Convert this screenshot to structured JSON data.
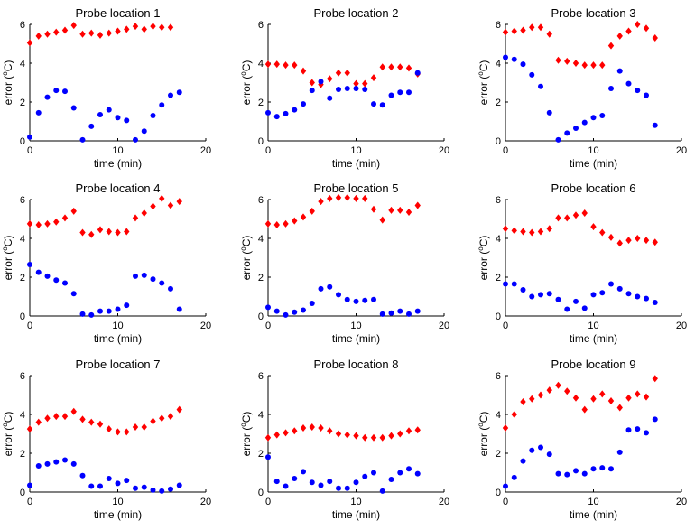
{
  "figure": {
    "marker_colors": {
      "red_series": "#ff0000",
      "blue_series": "#0000ff"
    }
  },
  "chart_data": [
    {
      "type": "scatter",
      "title": "Probe location 1",
      "xlabel": "time (min)",
      "ylabel_prefix": "error (",
      "ylabel_sup": "o",
      "ylabel_suffix": "C)",
      "xlim": [
        0,
        20
      ],
      "ylim": [
        0,
        6
      ],
      "xticks": [
        "0",
        "10",
        "20"
      ],
      "yticks": [
        "0",
        "2",
        "4",
        "6"
      ],
      "series": [
        {
          "name": "red",
          "marker": "diamond",
          "color": "#ff0000",
          "x": [
            0,
            1,
            2,
            3,
            4,
            5,
            6,
            7,
            8,
            9,
            10,
            11,
            12,
            13,
            14,
            15,
            16,
            17
          ],
          "y": [
            5.05,
            5.4,
            5.5,
            5.6,
            5.7,
            5.95,
            5.5,
            5.55,
            5.45,
            5.55,
            5.65,
            5.75,
            5.9,
            5.75,
            5.9,
            5.85,
            5.85,
            null
          ]
        },
        {
          "name": "blue",
          "marker": "circle",
          "color": "#0000ff",
          "x": [
            0,
            1,
            2,
            3,
            4,
            5,
            6,
            7,
            8,
            9,
            10,
            11,
            12,
            13,
            14,
            15,
            16,
            17
          ],
          "y": [
            0.2,
            1.45,
            2.25,
            2.6,
            2.55,
            1.7,
            0.05,
            0.75,
            1.35,
            1.6,
            1.2,
            1.05,
            0.05,
            0.5,
            1.3,
            1.85,
            2.35,
            2.5
          ]
        }
      ]
    },
    {
      "type": "scatter",
      "title": "Probe location 2",
      "xlabel": "time (min)",
      "ylabel_prefix": "error (",
      "ylabel_sup": "o",
      "ylabel_suffix": "C)",
      "xlim": [
        0,
        20
      ],
      "ylim": [
        0,
        6
      ],
      "xticks": [
        "0",
        "10",
        "20"
      ],
      "yticks": [
        "0",
        "2",
        "4",
        "6"
      ],
      "series": [
        {
          "name": "red",
          "marker": "diamond",
          "color": "#ff0000",
          "x": [
            0,
            1,
            2,
            3,
            4,
            5,
            6,
            7,
            8,
            9,
            10,
            11,
            12,
            13,
            14,
            15,
            16,
            17
          ],
          "y": [
            3.95,
            3.95,
            3.9,
            3.9,
            3.6,
            3.0,
            2.9,
            3.2,
            3.5,
            3.5,
            2.95,
            2.95,
            3.25,
            3.8,
            3.8,
            3.8,
            3.75,
            3.45
          ]
        },
        {
          "name": "blue",
          "marker": "circle",
          "color": "#0000ff",
          "x": [
            0,
            1,
            2,
            3,
            4,
            5,
            6,
            7,
            8,
            9,
            10,
            11,
            12,
            13,
            14,
            15,
            16,
            17
          ],
          "y": [
            1.45,
            1.25,
            1.4,
            1.6,
            1.9,
            2.6,
            3.05,
            2.2,
            2.65,
            2.7,
            2.7,
            2.65,
            1.9,
            1.85,
            2.35,
            2.5,
            2.5,
            3.5
          ]
        }
      ]
    },
    {
      "type": "scatter",
      "title": "Probe location 3",
      "xlabel": "time (min)",
      "ylabel_prefix": "error (",
      "ylabel_sup": "o",
      "ylabel_suffix": "C)",
      "xlim": [
        0,
        20
      ],
      "ylim": [
        0,
        6
      ],
      "xticks": [
        "0",
        "10",
        "20"
      ],
      "yticks": [
        "0",
        "2",
        "4",
        "6"
      ],
      "series": [
        {
          "name": "red",
          "marker": "diamond",
          "color": "#ff0000",
          "x": [
            0,
            1,
            2,
            3,
            4,
            5,
            6,
            7,
            8,
            9,
            10,
            11,
            12,
            13,
            14,
            15,
            16,
            17
          ],
          "y": [
            5.6,
            5.65,
            5.7,
            5.85,
            5.85,
            5.5,
            4.15,
            4.1,
            4.0,
            3.9,
            3.9,
            3.9,
            4.9,
            5.4,
            5.65,
            6.0,
            5.8,
            5.3
          ]
        },
        {
          "name": "blue",
          "marker": "circle",
          "color": "#0000ff",
          "x": [
            0,
            1,
            2,
            3,
            4,
            5,
            6,
            7,
            8,
            9,
            10,
            11,
            12,
            13,
            14,
            15,
            16,
            17
          ],
          "y": [
            4.3,
            4.2,
            3.95,
            3.4,
            2.8,
            1.45,
            0.05,
            0.4,
            0.65,
            0.95,
            1.2,
            1.3,
            2.7,
            3.6,
            2.95,
            2.6,
            2.35,
            0.8
          ]
        }
      ]
    },
    {
      "type": "scatter",
      "title": "Probe location 4",
      "xlabel": "time (min)",
      "ylabel_prefix": "error (",
      "ylabel_sup": "o",
      "ylabel_suffix": "C)",
      "xlim": [
        0,
        20
      ],
      "ylim": [
        0,
        6
      ],
      "xticks": [
        "0",
        "10",
        "20"
      ],
      "yticks": [
        "0",
        "2",
        "4",
        "6"
      ],
      "series": [
        {
          "name": "red",
          "marker": "diamond",
          "color": "#ff0000",
          "x": [
            0,
            1,
            2,
            3,
            4,
            5,
            6,
            7,
            8,
            9,
            10,
            11,
            12,
            13,
            14,
            15,
            16,
            17
          ],
          "y": [
            4.75,
            4.7,
            4.75,
            4.85,
            5.05,
            5.4,
            4.3,
            4.2,
            4.45,
            4.35,
            4.3,
            4.35,
            5.05,
            5.3,
            5.65,
            6.05,
            5.7,
            5.9
          ]
        },
        {
          "name": "blue",
          "marker": "circle",
          "color": "#0000ff",
          "x": [
            0,
            1,
            2,
            3,
            4,
            5,
            6,
            7,
            8,
            9,
            10,
            11,
            12,
            13,
            14,
            15,
            16,
            17
          ],
          "y": [
            2.65,
            2.25,
            2.05,
            1.85,
            1.7,
            1.15,
            0.1,
            0.05,
            0.25,
            0.25,
            0.35,
            0.55,
            2.05,
            2.1,
            1.9,
            1.7,
            1.4,
            0.35
          ]
        }
      ]
    },
    {
      "type": "scatter",
      "title": "Probe location 5",
      "xlabel": "time (min)",
      "ylabel_prefix": "error (",
      "ylabel_sup": "o",
      "ylabel_suffix": "C)",
      "xlim": [
        0,
        20
      ],
      "ylim": [
        0,
        6
      ],
      "xticks": [
        "0",
        "10",
        "20"
      ],
      "yticks": [
        "0",
        "2",
        "4",
        "6"
      ],
      "series": [
        {
          "name": "red",
          "marker": "diamond",
          "color": "#ff0000",
          "x": [
            0,
            1,
            2,
            3,
            4,
            5,
            6,
            7,
            8,
            9,
            10,
            11,
            12,
            13,
            14,
            15,
            16,
            17
          ],
          "y": [
            4.75,
            4.7,
            4.75,
            4.9,
            5.1,
            5.4,
            5.9,
            6.05,
            6.1,
            6.1,
            6.05,
            6.05,
            5.5,
            4.95,
            5.45,
            5.45,
            5.35,
            5.7
          ]
        },
        {
          "name": "blue",
          "marker": "circle",
          "color": "#0000ff",
          "x": [
            0,
            1,
            2,
            3,
            4,
            5,
            6,
            7,
            8,
            9,
            10,
            11,
            12,
            13,
            14,
            15,
            16,
            17
          ],
          "y": [
            0.45,
            0.25,
            0.05,
            0.2,
            0.3,
            0.65,
            1.4,
            1.5,
            1.1,
            0.85,
            0.75,
            0.8,
            0.85,
            0.1,
            0.15,
            0.25,
            0.1,
            0.25
          ]
        }
      ]
    },
    {
      "type": "scatter",
      "title": "Probe location 6",
      "xlabel": "time (min)",
      "ylabel_prefix": "error (",
      "ylabel_sup": "o",
      "ylabel_suffix": "C)",
      "xlim": [
        0,
        20
      ],
      "ylim": [
        0,
        6
      ],
      "xticks": [
        "0",
        "10",
        "20"
      ],
      "yticks": [
        "0",
        "2",
        "4",
        "6"
      ],
      "series": [
        {
          "name": "red",
          "marker": "diamond",
          "color": "#ff0000",
          "x": [
            0,
            1,
            2,
            3,
            4,
            5,
            6,
            7,
            8,
            9,
            10,
            11,
            12,
            13,
            14,
            15,
            16,
            17
          ],
          "y": [
            4.5,
            4.4,
            4.35,
            4.3,
            4.35,
            4.5,
            5.05,
            5.05,
            5.2,
            5.3,
            4.6,
            4.3,
            4.05,
            3.75,
            3.9,
            4.0,
            3.9,
            3.8
          ]
        },
        {
          "name": "blue",
          "marker": "circle",
          "color": "#0000ff",
          "x": [
            0,
            1,
            2,
            3,
            4,
            5,
            6,
            7,
            8,
            9,
            10,
            11,
            12,
            13,
            14,
            15,
            16,
            17
          ],
          "y": [
            1.65,
            1.65,
            1.35,
            1.0,
            1.1,
            1.15,
            0.85,
            0.35,
            0.75,
            0.4,
            1.1,
            1.2,
            1.65,
            1.4,
            1.15,
            1.0,
            0.9,
            0.7
          ]
        }
      ]
    },
    {
      "type": "scatter",
      "title": "Probe location 7",
      "xlabel": "time (min)",
      "ylabel_prefix": "error (",
      "ylabel_sup": "o",
      "ylabel_suffix": "C)",
      "xlim": [
        0,
        20
      ],
      "ylim": [
        0,
        6
      ],
      "xticks": [
        "0",
        "10",
        "20"
      ],
      "yticks": [
        "0",
        "2",
        "4",
        "6"
      ],
      "series": [
        {
          "name": "red",
          "marker": "diamond",
          "color": "#ff0000",
          "x": [
            0,
            1,
            2,
            3,
            4,
            5,
            6,
            7,
            8,
            9,
            10,
            11,
            12,
            13,
            14,
            15,
            16,
            17
          ],
          "y": [
            3.25,
            3.6,
            3.8,
            3.9,
            3.9,
            4.15,
            3.75,
            3.6,
            3.5,
            3.25,
            3.1,
            3.1,
            3.35,
            3.35,
            3.65,
            3.8,
            3.9,
            4.25
          ]
        },
        {
          "name": "blue",
          "marker": "circle",
          "color": "#0000ff",
          "x": [
            0,
            1,
            2,
            3,
            4,
            5,
            6,
            7,
            8,
            9,
            10,
            11,
            12,
            13,
            14,
            15,
            16,
            17
          ],
          "y": [
            0.35,
            1.35,
            1.45,
            1.55,
            1.65,
            1.45,
            0.85,
            0.3,
            0.3,
            0.7,
            0.45,
            0.6,
            0.2,
            0.25,
            0.1,
            0.05,
            0.15,
            0.35
          ]
        }
      ]
    },
    {
      "type": "scatter",
      "title": "Probe location 8",
      "xlabel": "time (min)",
      "ylabel_prefix": "error (",
      "ylabel_sup": "o",
      "ylabel_suffix": "C)",
      "xlim": [
        0,
        20
      ],
      "ylim": [
        0,
        6
      ],
      "xticks": [
        "0",
        "10",
        "20"
      ],
      "yticks": [
        "0",
        "2",
        "4",
        "6"
      ],
      "series": [
        {
          "name": "red",
          "marker": "diamond",
          "color": "#ff0000",
          "x": [
            0,
            1,
            2,
            3,
            4,
            5,
            6,
            7,
            8,
            9,
            10,
            11,
            12,
            13,
            14,
            15,
            16,
            17
          ],
          "y": [
            2.8,
            2.95,
            3.05,
            3.15,
            3.3,
            3.35,
            3.3,
            3.15,
            3.0,
            2.95,
            2.9,
            2.8,
            2.8,
            2.8,
            2.9,
            3.0,
            3.15,
            3.2
          ]
        },
        {
          "name": "blue",
          "marker": "circle",
          "color": "#0000ff",
          "x": [
            0,
            1,
            2,
            3,
            4,
            5,
            6,
            7,
            8,
            9,
            10,
            11,
            12,
            13,
            14,
            15,
            16,
            17
          ],
          "y": [
            1.8,
            0.55,
            0.3,
            0.7,
            1.05,
            0.5,
            0.35,
            0.55,
            0.2,
            0.2,
            0.5,
            0.8,
            1.0,
            0.05,
            0.65,
            1.0,
            1.2,
            0.95
          ]
        }
      ]
    },
    {
      "type": "scatter",
      "title": "Probe location 9",
      "xlabel": "time (min)",
      "ylabel_prefix": "error (",
      "ylabel_sup": "o",
      "ylabel_suffix": "C)",
      "xlim": [
        0,
        20
      ],
      "ylim": [
        0,
        6
      ],
      "xticks": [
        "0",
        "10",
        "20"
      ],
      "yticks": [
        "0",
        "2",
        "4",
        "6"
      ],
      "series": [
        {
          "name": "red",
          "marker": "diamond",
          "color": "#ff0000",
          "x": [
            0,
            1,
            2,
            3,
            4,
            5,
            6,
            7,
            8,
            9,
            10,
            11,
            12,
            13,
            14,
            15,
            16,
            17
          ],
          "y": [
            3.3,
            4.0,
            4.65,
            4.8,
            5.0,
            5.25,
            5.5,
            5.2,
            4.85,
            4.25,
            4.8,
            5.05,
            4.7,
            4.35,
            4.85,
            5.05,
            4.9,
            5.85
          ]
        },
        {
          "name": "blue",
          "marker": "circle",
          "color": "#0000ff",
          "x": [
            0,
            1,
            2,
            3,
            4,
            5,
            6,
            7,
            8,
            9,
            10,
            11,
            12,
            13,
            14,
            15,
            16,
            17
          ],
          "y": [
            0.3,
            0.75,
            1.6,
            2.15,
            2.3,
            1.95,
            0.95,
            0.9,
            1.1,
            0.95,
            1.2,
            1.25,
            1.2,
            2.05,
            3.2,
            3.25,
            3.05,
            3.75
          ]
        }
      ]
    }
  ]
}
